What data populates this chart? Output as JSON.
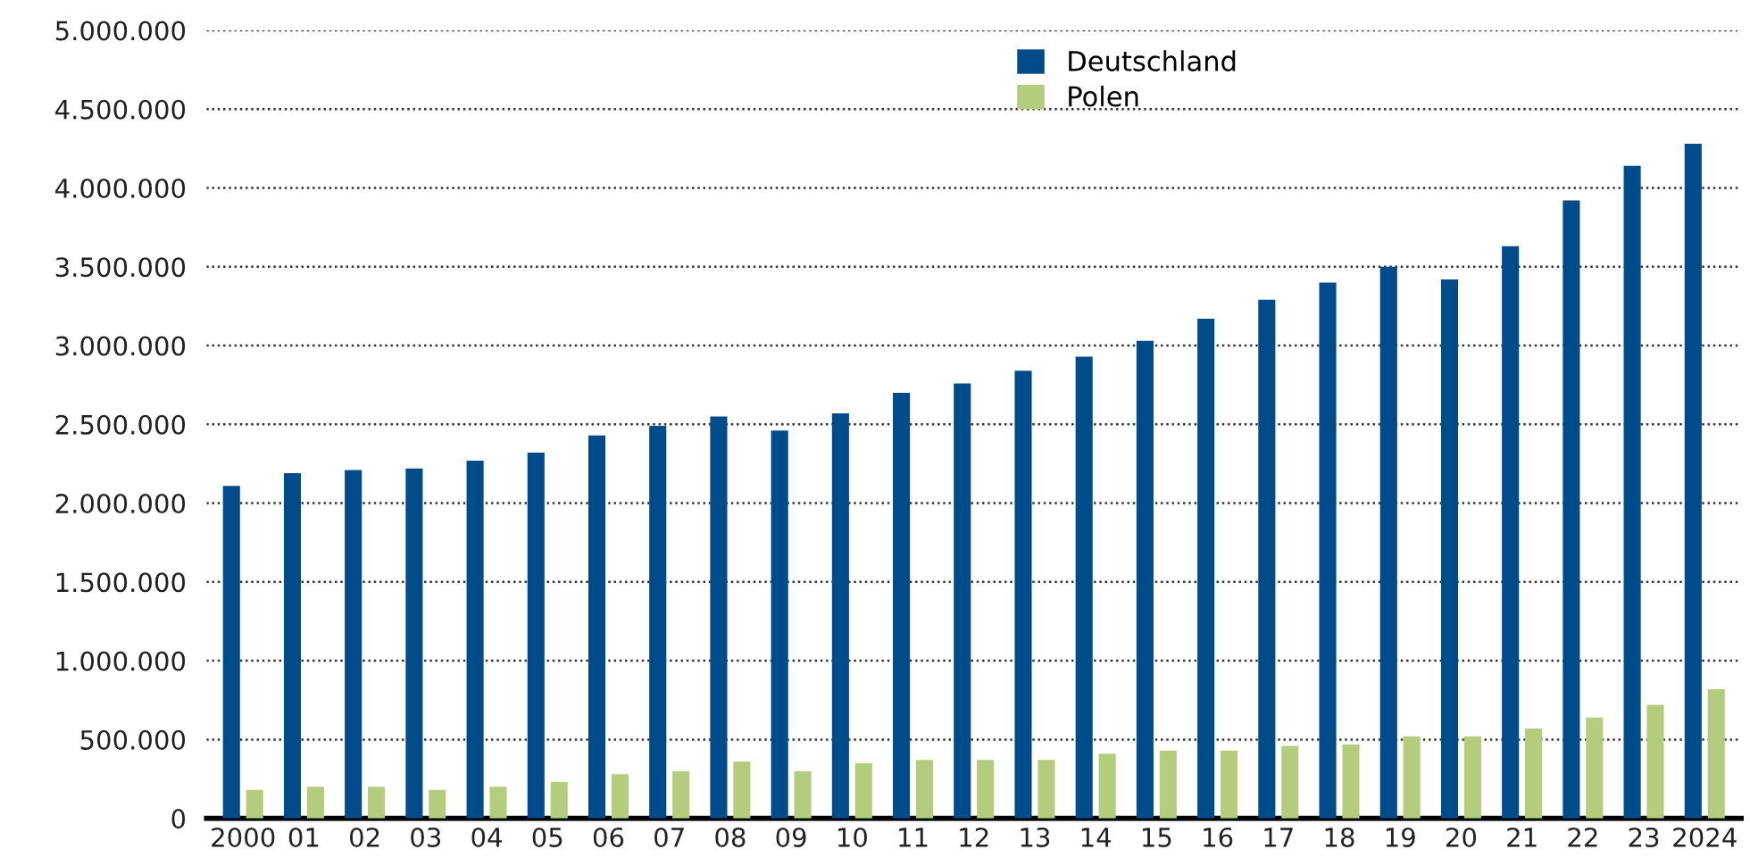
{
  "chart_data": {
    "type": "bar",
    "categories": [
      "2000",
      "01",
      "02",
      "03",
      "04",
      "05",
      "06",
      "07",
      "08",
      "09",
      "10",
      "11",
      "12",
      "13",
      "14",
      "15",
      "16",
      "17",
      "18",
      "19",
      "20",
      "21",
      "22",
      "23",
      "2024"
    ],
    "series": [
      {
        "name": "Deutschland",
        "color": "#004c8a",
        "values": [
          2110000,
          2190000,
          2210000,
          2220000,
          2270000,
          2320000,
          2430000,
          2490000,
          2550000,
          2460000,
          2570000,
          2700000,
          2760000,
          2840000,
          2930000,
          3030000,
          3170000,
          3290000,
          3400000,
          3500000,
          3420000,
          3630000,
          3920000,
          4140000,
          4280000
        ]
      },
      {
        "name": "Polen",
        "color": "#b3cd7c",
        "values": [
          180000,
          200000,
          200000,
          180000,
          200000,
          230000,
          280000,
          300000,
          360000,
          300000,
          350000,
          370000,
          370000,
          370000,
          410000,
          430000,
          430000,
          460000,
          470000,
          520000,
          520000,
          570000,
          640000,
          720000,
          820000
        ]
      }
    ],
    "ylim": [
      0,
      5000000
    ],
    "yticks": [
      {
        "value": 0,
        "label": "0"
      },
      {
        "value": 500000,
        "label": "500.000"
      },
      {
        "value": 1000000,
        "label": "1.000.000"
      },
      {
        "value": 1500000,
        "label": "1.500.000"
      },
      {
        "value": 2000000,
        "label": "2.000.000"
      },
      {
        "value": 2500000,
        "label": "2.500.000"
      },
      {
        "value": 3000000,
        "label": "3.000.000"
      },
      {
        "value": 3500000,
        "label": "3.500.000"
      },
      {
        "value": 4000000,
        "label": "4.000.000"
      },
      {
        "value": 4500000,
        "label": "4.500.000"
      },
      {
        "value": 5000000,
        "label": "5.000.000"
      }
    ],
    "grid": "y",
    "legend": "top"
  }
}
